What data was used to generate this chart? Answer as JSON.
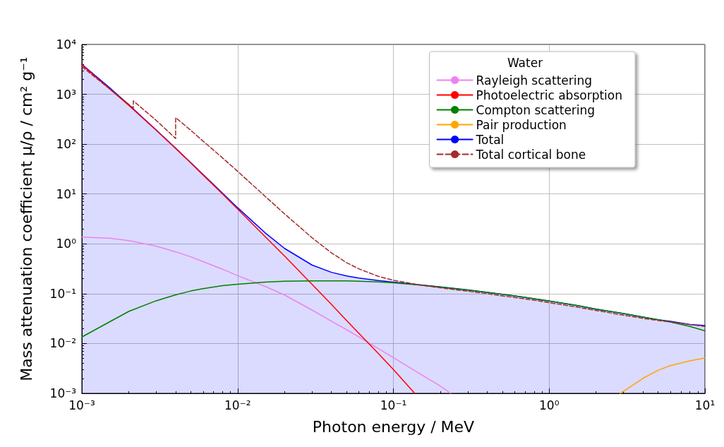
{
  "chart_data": {
    "type": "line",
    "xlabel": "Photon energy / MeV",
    "ylabel": "Mass attenuation coefficient μ/ρ / cm² g⁻¹",
    "legend_title": "Water",
    "log": "xy",
    "grid": true,
    "legend": "top right",
    "marker": "none",
    "line_style": "solid",
    "xlim": [
      0.001,
      10
    ],
    "ylim": [
      0.001,
      10000
    ],
    "xticks": [
      {
        "value": 0.001,
        "label": "10⁻³"
      },
      {
        "value": 0.01,
        "label": "10⁻²"
      },
      {
        "value": 0.1,
        "label": "10⁻¹"
      },
      {
        "value": 1,
        "label": "10⁰"
      },
      {
        "value": 10,
        "label": "10¹"
      }
    ],
    "yticks": [
      {
        "value": 0.001,
        "label": "10⁻³"
      },
      {
        "value": 0.01,
        "label": "10⁻²"
      },
      {
        "value": 0.1,
        "label": "10⁻¹"
      },
      {
        "value": 1,
        "label": "10⁰"
      },
      {
        "value": 10,
        "label": "10¹"
      },
      {
        "value": 100,
        "label": "10²"
      },
      {
        "value": 1000,
        "label": "10³"
      },
      {
        "value": 10000,
        "label": "10⁴"
      }
    ],
    "series": [
      {
        "name": "Rayleigh scattering",
        "color": "#ee82ee",
        "x": [
          0.001,
          0.0015,
          0.002,
          0.003,
          0.004,
          0.005,
          0.006,
          0.008,
          0.01,
          0.015,
          0.02,
          0.03,
          0.04,
          0.05,
          0.06,
          0.08,
          0.1,
          0.15,
          0.2,
          0.233
        ],
        "values": [
          1.37,
          1.3,
          1.16,
          0.9,
          0.69,
          0.55,
          0.44,
          0.31,
          0.23,
          0.14,
          0.094,
          0.047,
          0.028,
          0.019,
          0.0135,
          0.0079,
          0.0052,
          0.0024,
          0.0014,
          0.001
        ]
      },
      {
        "name": "Photoelectric absorption",
        "color": "#ff0000",
        "x": [
          0.001,
          0.0015,
          0.002,
          0.003,
          0.004,
          0.005,
          0.006,
          0.008,
          0.01,
          0.015,
          0.02,
          0.03,
          0.04,
          0.05,
          0.06,
          0.08,
          0.1,
          0.137
        ],
        "values": [
          3900,
          1300,
          600,
          190,
          82,
          42,
          24,
          10,
          5,
          1.4,
          0.57,
          0.155,
          0.061,
          0.029,
          0.016,
          0.0063,
          0.003,
          0.001
        ]
      },
      {
        "name": "Compton scattering",
        "color": "#008000",
        "x": [
          0.001,
          0.0015,
          0.002,
          0.003,
          0.004,
          0.005,
          0.006,
          0.008,
          0.01,
          0.015,
          0.02,
          0.03,
          0.04,
          0.05,
          0.06,
          0.08,
          0.1,
          0.15,
          0.2,
          0.3,
          0.4,
          0.5,
          0.6,
          0.8,
          1,
          1.5,
          2,
          3,
          4,
          5,
          6,
          8,
          10
        ],
        "values": [
          0.0135,
          0.027,
          0.044,
          0.072,
          0.095,
          0.113,
          0.126,
          0.145,
          0.155,
          0.17,
          0.177,
          0.181,
          0.181,
          0.18,
          0.177,
          0.172,
          0.165,
          0.148,
          0.136,
          0.118,
          0.106,
          0.097,
          0.09,
          0.079,
          0.071,
          0.058,
          0.049,
          0.04,
          0.034,
          0.03,
          0.027,
          0.022,
          0.018
        ]
      },
      {
        "name": "Pair production",
        "color": "#ffa500",
        "x": [
          2.86,
          3,
          4,
          5,
          6,
          8,
          10
        ],
        "values": [
          0.001,
          0.0011,
          0.002,
          0.0029,
          0.0036,
          0.0045,
          0.0051
        ]
      },
      {
        "name": "Total",
        "type": "area",
        "color": "#0000ff",
        "x": [
          0.001,
          0.0015,
          0.002,
          0.003,
          0.004,
          0.005,
          0.006,
          0.008,
          0.01,
          0.015,
          0.02,
          0.03,
          0.04,
          0.05,
          0.06,
          0.08,
          0.1,
          0.15,
          0.2,
          0.3,
          0.4,
          0.5,
          0.6,
          0.8,
          1,
          1.5,
          2,
          3,
          4,
          5,
          6,
          8,
          10
        ],
        "values": [
          4000,
          1370,
          617,
          193,
          83,
          42.6,
          24.6,
          10.4,
          5.3,
          1.67,
          0.81,
          0.376,
          0.268,
          0.227,
          0.206,
          0.184,
          0.171,
          0.15,
          0.137,
          0.119,
          0.106,
          0.097,
          0.09,
          0.079,
          0.071,
          0.058,
          0.049,
          0.04,
          0.034,
          0.03,
          0.028,
          0.024,
          0.023
        ]
      },
      {
        "name": "Total cortical bone",
        "color": "#a52a2a",
        "line_style": "dashed",
        "x": [
          0.001,
          0.0015,
          0.00214,
          0.00214,
          0.003,
          0.004,
          0.004,
          0.005,
          0.006,
          0.008,
          0.01,
          0.015,
          0.02,
          0.03,
          0.04,
          0.05,
          0.06,
          0.08,
          0.1,
          0.15,
          0.2,
          0.3,
          0.4,
          0.5,
          0.6,
          0.8,
          1,
          1.5,
          2,
          3,
          4,
          5,
          6,
          8,
          10
        ],
        "values": [
          3600,
          1300,
          530,
          740,
          300,
          130,
          340,
          190,
          115,
          53,
          28.5,
          9,
          4,
          1.33,
          0.66,
          0.42,
          0.315,
          0.223,
          0.186,
          0.148,
          0.131,
          0.112,
          0.1,
          0.09,
          0.084,
          0.074,
          0.066,
          0.054,
          0.046,
          0.037,
          0.032,
          0.029,
          0.027,
          0.024,
          0.022
        ]
      }
    ]
  }
}
